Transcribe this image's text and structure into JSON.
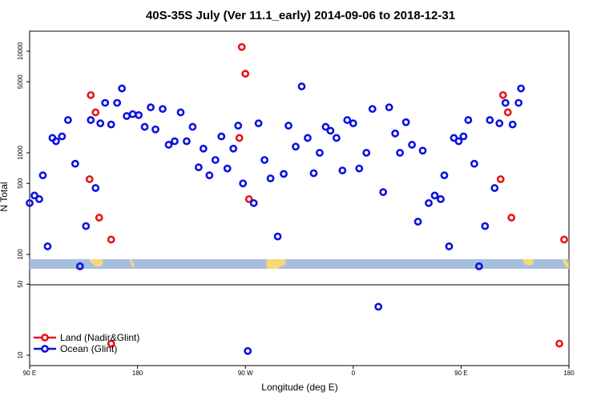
{
  "chart_data": {
    "type": "scatter",
    "title": "40S-35S July (Ver 11.1_early)   2014-09-06 to 2018-12-31",
    "xlabel": "Longitude (deg E)",
    "ylabel": "N Total",
    "x_ticks": [
      {
        "value": 90,
        "label": "90 E"
      },
      {
        "value": 180,
        "label": "180"
      },
      {
        "value": 270,
        "label": "90 W"
      },
      {
        "value": 360,
        "label": "0"
      },
      {
        "value": 450,
        "label": "90 E"
      },
      {
        "value": 540,
        "label": "180"
      }
    ],
    "upper_yticks": [
      {
        "value": 100,
        "label": "100"
      },
      {
        "value": 500,
        "label": "500"
      },
      {
        "value": 1000,
        "label": "1000"
      },
      {
        "value": 5000,
        "label": "5000"
      },
      {
        "value": 10000,
        "label": "10000"
      }
    ],
    "lower_yticks": [
      {
        "value": 10,
        "label": "10"
      },
      {
        "value": 50,
        "label": "50"
      }
    ],
    "colors": {
      "land": "#e8141c",
      "ocean": "#0b12e0",
      "ocean_band": "#a7bedf",
      "land_band": "#f8d878"
    },
    "legend": [
      {
        "key": "land",
        "label": "Land (Nadir&Glint)"
      },
      {
        "key": "ocean",
        "label": "Ocean (Glint)"
      }
    ],
    "series": [
      {
        "key": "land",
        "name": "Land (Nadir&Glint)",
        "points": [
          [
            140,
            550
          ],
          [
            141,
            3700
          ],
          [
            145,
            2500
          ],
          [
            148,
            230
          ],
          [
            158,
            13
          ],
          [
            158,
            140
          ],
          [
            265,
            1400
          ],
          [
            267,
            11000
          ],
          [
            270,
            6000
          ],
          [
            273,
            350
          ],
          [
            483,
            550
          ],
          [
            485,
            3700
          ],
          [
            489,
            2500
          ],
          [
            492,
            230
          ],
          [
            532,
            13
          ],
          [
            536,
            140
          ]
        ]
      },
      {
        "key": "ocean",
        "name": "Ocean (Glint)",
        "points": [
          [
            90,
            320
          ],
          [
            94,
            380
          ],
          [
            98,
            350
          ],
          [
            101,
            600
          ],
          [
            105,
            120
          ],
          [
            109,
            1400
          ],
          [
            112,
            1300
          ],
          [
            117,
            1450
          ],
          [
            122,
            2100
          ],
          [
            128,
            780
          ],
          [
            132,
            75
          ],
          [
            137,
            190
          ],
          [
            141,
            2100
          ],
          [
            145,
            450
          ],
          [
            149,
            1950
          ],
          [
            153,
            3100
          ],
          [
            158,
            1900
          ],
          [
            163,
            3100
          ],
          [
            167,
            4300
          ],
          [
            171,
            2300
          ],
          [
            176,
            2400
          ],
          [
            181,
            2350
          ],
          [
            186,
            1800
          ],
          [
            191,
            2800
          ],
          [
            195,
            1700
          ],
          [
            201,
            2700
          ],
          [
            206,
            1200
          ],
          [
            211,
            1300
          ],
          [
            216,
            2500
          ],
          [
            221,
            1300
          ],
          [
            226,
            1800
          ],
          [
            231,
            720
          ],
          [
            235,
            1100
          ],
          [
            240,
            600
          ],
          [
            245,
            850
          ],
          [
            250,
            1450
          ],
          [
            255,
            700
          ],
          [
            260,
            1100
          ],
          [
            264,
            1850
          ],
          [
            268,
            500
          ],
          [
            272,
            11
          ],
          [
            277,
            320
          ],
          [
            281,
            1950
          ],
          [
            286,
            850
          ],
          [
            291,
            560
          ],
          [
            297,
            150
          ],
          [
            302,
            620
          ],
          [
            306,
            1850
          ],
          [
            312,
            1150
          ],
          [
            317,
            4500
          ],
          [
            322,
            1400
          ],
          [
            327,
            630
          ],
          [
            332,
            1000
          ],
          [
            337,
            1800
          ],
          [
            341,
            1650
          ],
          [
            346,
            1400
          ],
          [
            351,
            670
          ],
          [
            355,
            2100
          ],
          [
            360,
            1950
          ],
          [
            365,
            700
          ],
          [
            371,
            1000
          ],
          [
            376,
            2700
          ],
          [
            381,
            30
          ],
          [
            385,
            410
          ],
          [
            390,
            2800
          ],
          [
            395,
            1550
          ],
          [
            399,
            1000
          ],
          [
            404,
            2000
          ],
          [
            409,
            1200
          ],
          [
            414,
            210
          ],
          [
            418,
            1050
          ],
          [
            423,
            320
          ],
          [
            428,
            380
          ],
          [
            433,
            350
          ],
          [
            436,
            600
          ],
          [
            440,
            120
          ],
          [
            444,
            1400
          ],
          [
            448,
            1300
          ],
          [
            452,
            1450
          ],
          [
            456,
            2100
          ],
          [
            461,
            780
          ],
          [
            465,
            75
          ],
          [
            470,
            190
          ],
          [
            474,
            2100
          ],
          [
            478,
            450
          ],
          [
            482,
            1950
          ],
          [
            487,
            3100
          ],
          [
            493,
            1900
          ],
          [
            498,
            3100
          ],
          [
            500,
            4300
          ]
        ]
      }
    ]
  }
}
